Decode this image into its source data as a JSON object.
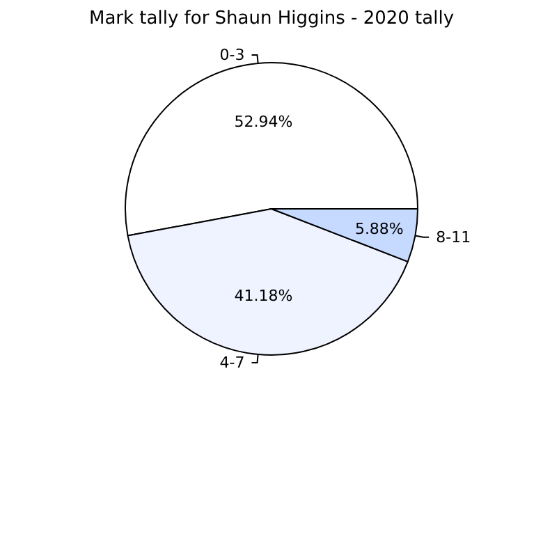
{
  "chart_data": {
    "type": "pie",
    "title": "Mark tally for Shaun Higgins - 2020 tally",
    "categories": [
      "0-3",
      "4-7",
      "8-11"
    ],
    "values": [
      52.94,
      41.18,
      5.88
    ],
    "value_labels": [
      "52.94%",
      "41.18%",
      "5.88%"
    ],
    "colors": [
      "#ffffff",
      "#eef3ff",
      "#c6d9ff"
    ],
    "legend": false
  }
}
